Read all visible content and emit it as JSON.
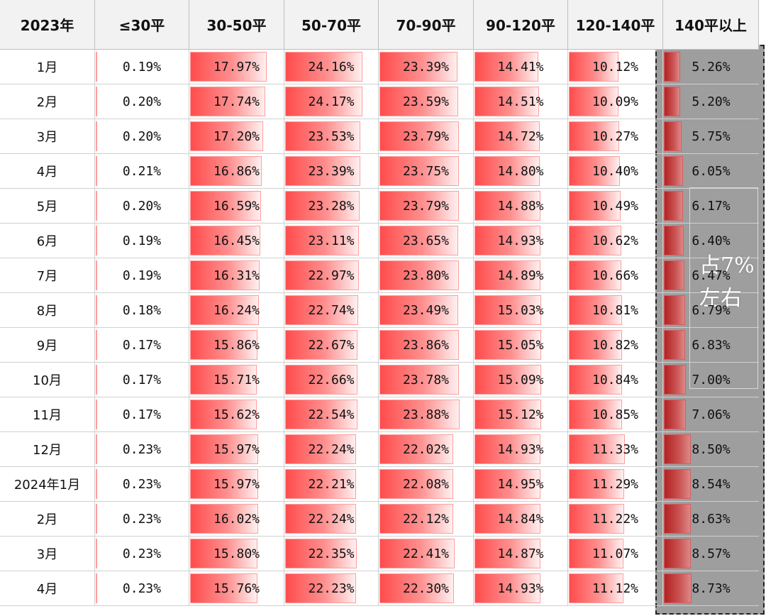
{
  "headers": [
    "2023年",
    "≤30平",
    "30-50平",
    "50-70平",
    "70-90平",
    "90-120平",
    "120-140平",
    "140平以上"
  ],
  "rows": [
    {
      "month": "1月",
      "vals": [
        "0.19%",
        "17.97%",
        "24.16%",
        "23.39%",
        "14.41%",
        "10.12%",
        "5.26%"
      ]
    },
    {
      "month": "2月",
      "vals": [
        "0.20%",
        "17.74%",
        "24.17%",
        "23.59%",
        "14.51%",
        "10.09%",
        "5.20%"
      ]
    },
    {
      "month": "3月",
      "vals": [
        "0.20%",
        "17.20%",
        "23.53%",
        "23.79%",
        "14.72%",
        "10.27%",
        "5.75%"
      ]
    },
    {
      "month": "4月",
      "vals": [
        "0.21%",
        "16.86%",
        "23.39%",
        "23.75%",
        "14.80%",
        "10.40%",
        "6.05%"
      ]
    },
    {
      "month": "5月",
      "vals": [
        "0.20%",
        "16.59%",
        "23.28%",
        "23.79%",
        "14.88%",
        "10.49%",
        "6.17%"
      ]
    },
    {
      "month": "6月",
      "vals": [
        "0.19%",
        "16.45%",
        "23.11%",
        "23.65%",
        "14.93%",
        "10.62%",
        "6.40%"
      ]
    },
    {
      "month": "7月",
      "vals": [
        "0.19%",
        "16.31%",
        "22.97%",
        "23.80%",
        "14.89%",
        "10.66%",
        "6.47%"
      ]
    },
    {
      "month": "8月",
      "vals": [
        "0.18%",
        "16.24%",
        "22.74%",
        "23.49%",
        "15.03%",
        "10.81%",
        "6.79%"
      ]
    },
    {
      "month": "9月",
      "vals": [
        "0.17%",
        "15.86%",
        "22.67%",
        "23.86%",
        "15.05%",
        "10.82%",
        "6.83%"
      ]
    },
    {
      "month": "10月",
      "vals": [
        "0.17%",
        "15.71%",
        "22.66%",
        "23.78%",
        "15.09%",
        "10.84%",
        "7.00%"
      ]
    },
    {
      "month": "11月",
      "vals": [
        "0.17%",
        "15.62%",
        "22.54%",
        "23.88%",
        "15.12%",
        "10.85%",
        "7.06%"
      ]
    },
    {
      "month": "12月",
      "vals": [
        "0.23%",
        "15.97%",
        "22.24%",
        "22.02%",
        "14.93%",
        "11.33%",
        "8.50%"
      ]
    },
    {
      "month": "2024年1月",
      "vals": [
        "0.23%",
        "15.97%",
        "22.21%",
        "22.08%",
        "14.95%",
        "11.29%",
        "8.54%"
      ]
    },
    {
      "month": "2月",
      "vals": [
        "0.23%",
        "16.02%",
        "22.24%",
        "22.12%",
        "14.84%",
        "11.22%",
        "8.63%"
      ]
    },
    {
      "month": "3月",
      "vals": [
        "0.23%",
        "15.80%",
        "22.35%",
        "22.41%",
        "14.87%",
        "11.07%",
        "8.57%"
      ]
    },
    {
      "month": "4月",
      "vals": [
        "0.23%",
        "15.76%",
        "22.23%",
        "22.30%",
        "14.93%",
        "11.12%",
        "8.73%"
      ]
    }
  ],
  "annotation": [
    "占7%",
    "左右"
  ],
  "colors": {
    "bar": "#ff4c4c",
    "highlight": "#9e9e9e",
    "header_bg": "#f2f2f2"
  }
}
